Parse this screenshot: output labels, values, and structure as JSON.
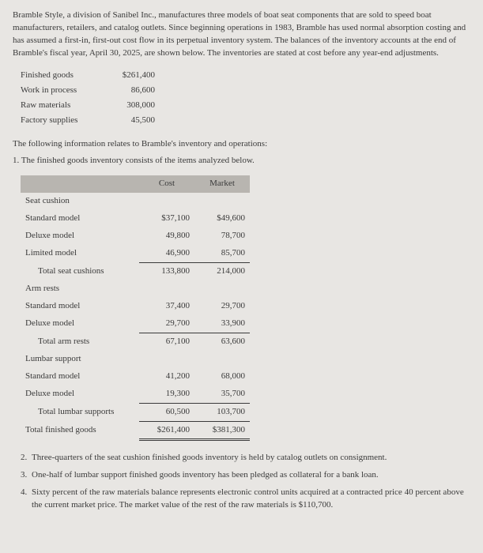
{
  "intro": {
    "text": "Bramble Style, a division of Sanibel Inc., manufactures three models of boat seat components that are sold to speed boat manufacturers, retailers, and catalog outlets. Since beginning operations in 1983, Bramble has used normal absorption costing and has assumed a first-in, first-out cost flow in its perpetual inventory system. The balances of the inventory accounts at the end of Bramble's fiscal year, April 30, 2025, are shown below. The inventories are stated at cost before any year-end adjustments."
  },
  "inventory_accounts": [
    {
      "label": "Finished goods",
      "value": "$261,400"
    },
    {
      "label": "Work in process",
      "value": "86,600"
    },
    {
      "label": "Raw materials",
      "value": "308,000"
    },
    {
      "label": "Factory supplies",
      "value": "45,500"
    }
  ],
  "section_lead": "The following information relates to Bramble's inventory and operations:",
  "note1": "1. The finished goods inventory consists of the items analyzed below.",
  "fg_table": {
    "headers": {
      "cost": "Cost",
      "market": "Market"
    },
    "groups": [
      {
        "title": "Seat cushion",
        "rows": [
          {
            "label": "Standard model",
            "cost": "$37,100",
            "market": "$49,600"
          },
          {
            "label": "Deluxe model",
            "cost": "49,800",
            "market": "78,700"
          },
          {
            "label": "Limited model",
            "cost": "46,900",
            "market": "85,700"
          }
        ],
        "subtotal": {
          "label": "Total seat cushions",
          "cost": "133,800",
          "market": "214,000"
        }
      },
      {
        "title": "Arm rests",
        "rows": [
          {
            "label": "Standard model",
            "cost": "37,400",
            "market": "29,700"
          },
          {
            "label": "Deluxe model",
            "cost": "29,700",
            "market": "33,900"
          }
        ],
        "subtotal": {
          "label": "Total arm rests",
          "cost": "67,100",
          "market": "63,600"
        }
      },
      {
        "title": "Lumbar support",
        "rows": [
          {
            "label": "Standard model",
            "cost": "41,200",
            "market": "68,000"
          },
          {
            "label": "Deluxe model",
            "cost": "19,300",
            "market": "35,700"
          }
        ],
        "subtotal": {
          "label": "Total lumbar supports",
          "cost": "60,500",
          "market": "103,700"
        }
      }
    ],
    "grand": {
      "label": "Total finished goods",
      "cost": "$261,400",
      "market": "$381,300"
    }
  },
  "notes": [
    {
      "n": "2.",
      "text": "Three-quarters of the seat cushion finished goods inventory is held by catalog outlets on consignment."
    },
    {
      "n": "3.",
      "text": "One-half of lumbar support finished goods inventory has been pledged as collateral for a bank loan."
    },
    {
      "n": "4.",
      "text": "Sixty percent of the raw materials balance represents electronic control units acquired at a contracted price 40 percent above the current market price. The market value of the rest of the raw materials is $110,700."
    }
  ],
  "colors": {
    "bg": "#e8e6e3",
    "text": "#3a3a3a",
    "header_bg": "#b8b5b0"
  }
}
